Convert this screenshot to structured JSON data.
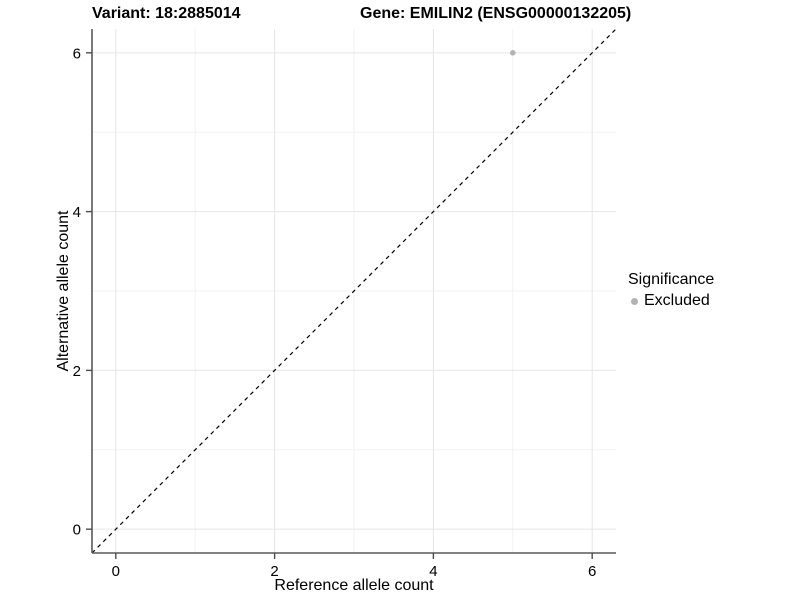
{
  "titles": {
    "variant": "Variant: 18:2885014",
    "gene": "Gene: EMILIN2 (ENSG00000132205)"
  },
  "chart_data": {
    "type": "scatter",
    "title_left": "Variant: 18:2885014",
    "title_right": "Gene: EMILIN2 (ENSG00000132205)",
    "xlabel": "Reference allele count",
    "ylabel": "Alternative allele count",
    "xlim": [
      -0.3,
      6.3
    ],
    "ylim": [
      -0.3,
      6.3
    ],
    "xticks": [
      0,
      2,
      4,
      6
    ],
    "yticks": [
      0,
      2,
      4,
      6
    ],
    "minor_ticks": [
      1,
      3,
      5
    ],
    "grid": true,
    "legend_position": "right",
    "reference_line": {
      "type": "identity y=x",
      "style": "dashed",
      "color": "#000000"
    },
    "series": [
      {
        "name": "Excluded",
        "color": "#b3b3b3",
        "points": [
          {
            "x": 5,
            "y": 6
          }
        ]
      }
    ],
    "legend": {
      "title": "Significance",
      "items": [
        {
          "label": "Excluded",
          "color": "#b3b3b3"
        }
      ]
    },
    "colors": {
      "grid_major": "#e6e6e6",
      "grid_minor": "#f2f2f2",
      "axis": "#595959",
      "tick": "#4d4d4d",
      "text": "#000000",
      "background": "#ffffff"
    }
  }
}
